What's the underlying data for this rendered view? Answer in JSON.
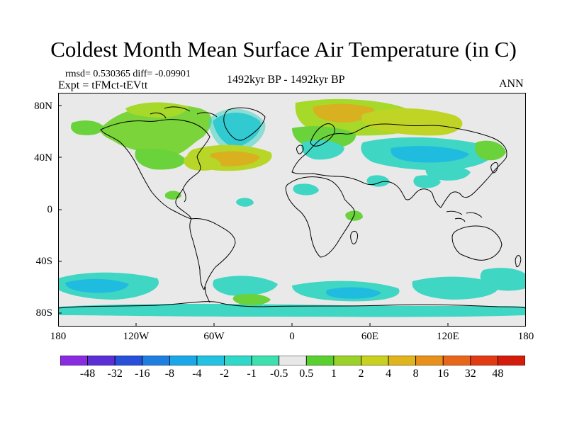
{
  "title": "Coldest Month Mean Surface Air Temperature (in C)",
  "stats": "rmsd= 0.530365  diff= -0.09901",
  "experiment": "Expt = tFMct-tEVtt",
  "period": "1492kyr BP - 1492kyr BP",
  "season": "ANN",
  "lat_labels": [
    "80N",
    "40N",
    "0",
    "40S",
    "80S"
  ],
  "lon_labels": [
    "180",
    "120W",
    "60W",
    "0",
    "60E",
    "120E",
    "180"
  ],
  "colorbar": {
    "labels": [
      "-48",
      "-32",
      "-16",
      "-8",
      "-4",
      "-2",
      "-1",
      "-0.5",
      "0.5",
      "1",
      "2",
      "4",
      "8",
      "16",
      "32",
      "48"
    ],
    "colors": [
      "#8a2be2",
      "#5b2fd6",
      "#2850d8",
      "#1f7fe0",
      "#1aa8e8",
      "#22c2e0",
      "#2fd8c8",
      "#3ee0b0",
      "#e8e8e8",
      "#5ad030",
      "#9ad22a",
      "#c8d020",
      "#e0b41c",
      "#e8901c",
      "#e8661a",
      "#e23a12",
      "#d41c0c"
    ]
  },
  "colors": {
    "land_fill": "#e9e9e9",
    "cool": "#3fd6c4",
    "cool_strong": "#20bce0",
    "warm": "#a6d92a",
    "warm_strong": "#d8b020",
    "green": "#6ad23a"
  }
}
